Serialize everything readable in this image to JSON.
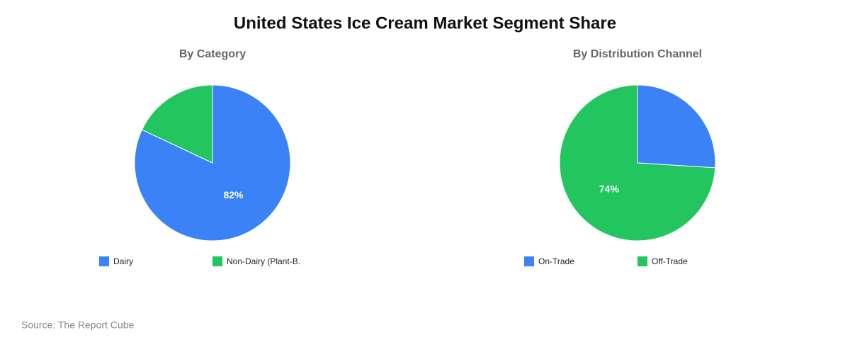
{
  "title": "United States Ice Cream Market Segment Share",
  "source": "Source: The Report Cube",
  "chart_data": [
    {
      "type": "pie",
      "title": "By Category",
      "categories": [
        "Dairy",
        "Non-Dairy (Plant-B."
      ],
      "values": [
        82,
        18
      ],
      "value_labels": [
        "82%",
        null
      ],
      "colors": [
        "#3b82f6",
        "#22c55e"
      ]
    },
    {
      "type": "pie",
      "title": "By Distribution Channel",
      "categories": [
        "On-Trade",
        "Off-Trade"
      ],
      "values": [
        26,
        74
      ],
      "value_labels": [
        null,
        "74%"
      ],
      "colors": [
        "#3b82f6",
        "#22c55e"
      ]
    }
  ]
}
